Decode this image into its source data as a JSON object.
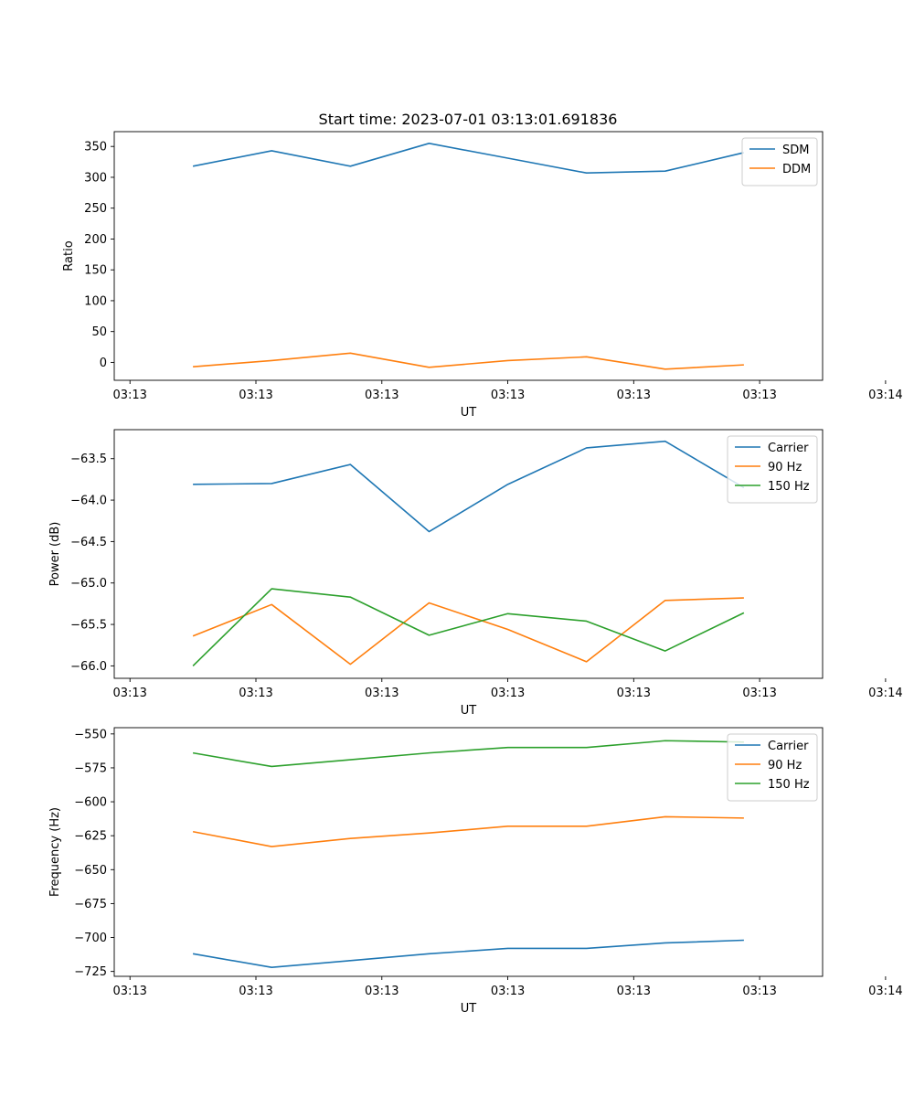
{
  "figure": {
    "title": "Start time: 2023-07-01 03:13:01.691836"
  },
  "colors": {
    "blue": "#1f77b4",
    "orange": "#ff7f0e",
    "green": "#2ca02c"
  },
  "chart_data": [
    {
      "type": "line",
      "title": "Start time: 2023-07-01 03:13:01.691836",
      "xlabel": "UT",
      "ylabel": "Ratio",
      "x": [
        1,
        2,
        3,
        4,
        5,
        6,
        7,
        8
      ],
      "xlim": [
        0,
        9
      ],
      "xticks": [
        0.2,
        1.8,
        3.4,
        5.0,
        6.6,
        8.2,
        9.8
      ],
      "xtick_labels": [
        "03:13",
        "03:13",
        "03:13",
        "03:13",
        "03:13",
        "03:13",
        "03:14"
      ],
      "ylim": [
        -29,
        374
      ],
      "yticks": [
        0,
        50,
        100,
        150,
        200,
        250,
        300,
        350
      ],
      "ytick_labels": [
        "0",
        "50",
        "100",
        "150",
        "200",
        "250",
        "300",
        "350"
      ],
      "legend": "top-right",
      "series": [
        {
          "name": "SDM",
          "color": "blue",
          "values": [
            318,
            343,
            318,
            355,
            331,
            307,
            310,
            340
          ]
        },
        {
          "name": "DDM",
          "color": "orange",
          "values": [
            -7,
            3,
            15,
            -8,
            3,
            9,
            -11,
            -4
          ]
        }
      ]
    },
    {
      "type": "line",
      "title": "",
      "xlabel": "UT",
      "ylabel": "Power (dB)",
      "x": [
        1,
        2,
        3,
        4,
        5,
        6,
        7,
        8
      ],
      "xlim": [
        0,
        9
      ],
      "xticks": [
        0.2,
        1.8,
        3.4,
        5.0,
        6.6,
        8.2,
        9.8
      ],
      "xtick_labels": [
        "03:13",
        "03:13",
        "03:13",
        "03:13",
        "03:13",
        "03:13",
        "03:14"
      ],
      "ylim": [
        -66.15,
        -63.15
      ],
      "yticks": [
        -66.0,
        -65.5,
        -65.0,
        -64.5,
        -64.0,
        -63.5
      ],
      "ytick_labels": [
        "−66.0",
        "−65.5",
        "−65.0",
        "−64.5",
        "−64.0",
        "−63.5"
      ],
      "legend": "top-right",
      "series": [
        {
          "name": "Carrier",
          "color": "blue",
          "values": [
            -63.81,
            -63.8,
            -63.57,
            -64.38,
            -63.81,
            -63.37,
            -63.29,
            -63.85
          ]
        },
        {
          "name": "90 Hz",
          "color": "orange",
          "values": [
            -65.64,
            -65.26,
            -65.98,
            -65.24,
            -65.56,
            -65.95,
            -65.21,
            -65.18
          ]
        },
        {
          "name": "150 Hz",
          "color": "green",
          "values": [
            -66.0,
            -65.07,
            -65.17,
            -65.63,
            -65.37,
            -65.46,
            -65.82,
            -65.36
          ]
        }
      ]
    },
    {
      "type": "line",
      "title": "",
      "xlabel": "UT",
      "ylabel": "Frequency (Hz)",
      "x": [
        1,
        2,
        3,
        4,
        5,
        6,
        7,
        8
      ],
      "xlim": [
        0,
        9
      ],
      "xticks": [
        0.2,
        1.8,
        3.4,
        5.0,
        6.6,
        8.2,
        9.8
      ],
      "xtick_labels": [
        "03:13",
        "03:13",
        "03:13",
        "03:13",
        "03:13",
        "03:13",
        "03:14"
      ],
      "ylim": [
        -728.6,
        -545.4
      ],
      "yticks": [
        -725,
        -700,
        -675,
        -650,
        -625,
        -600,
        -575,
        -550
      ],
      "ytick_labels": [
        "−725",
        "−700",
        "−675",
        "−650",
        "−625",
        "−600",
        "−575",
        "−550"
      ],
      "legend": "top-right",
      "series": [
        {
          "name": "Carrier",
          "color": "blue",
          "values": [
            -712,
            -722,
            -717,
            -712,
            -708,
            -708,
            -704,
            -702
          ]
        },
        {
          "name": "90 Hz",
          "color": "orange",
          "values": [
            -622,
            -633,
            -627,
            -623,
            -618,
            -618,
            -611,
            -612
          ]
        },
        {
          "name": "150 Hz",
          "color": "green",
          "values": [
            -564,
            -574,
            -569,
            -564,
            -560,
            -560,
            -555,
            -556
          ]
        }
      ]
    }
  ]
}
